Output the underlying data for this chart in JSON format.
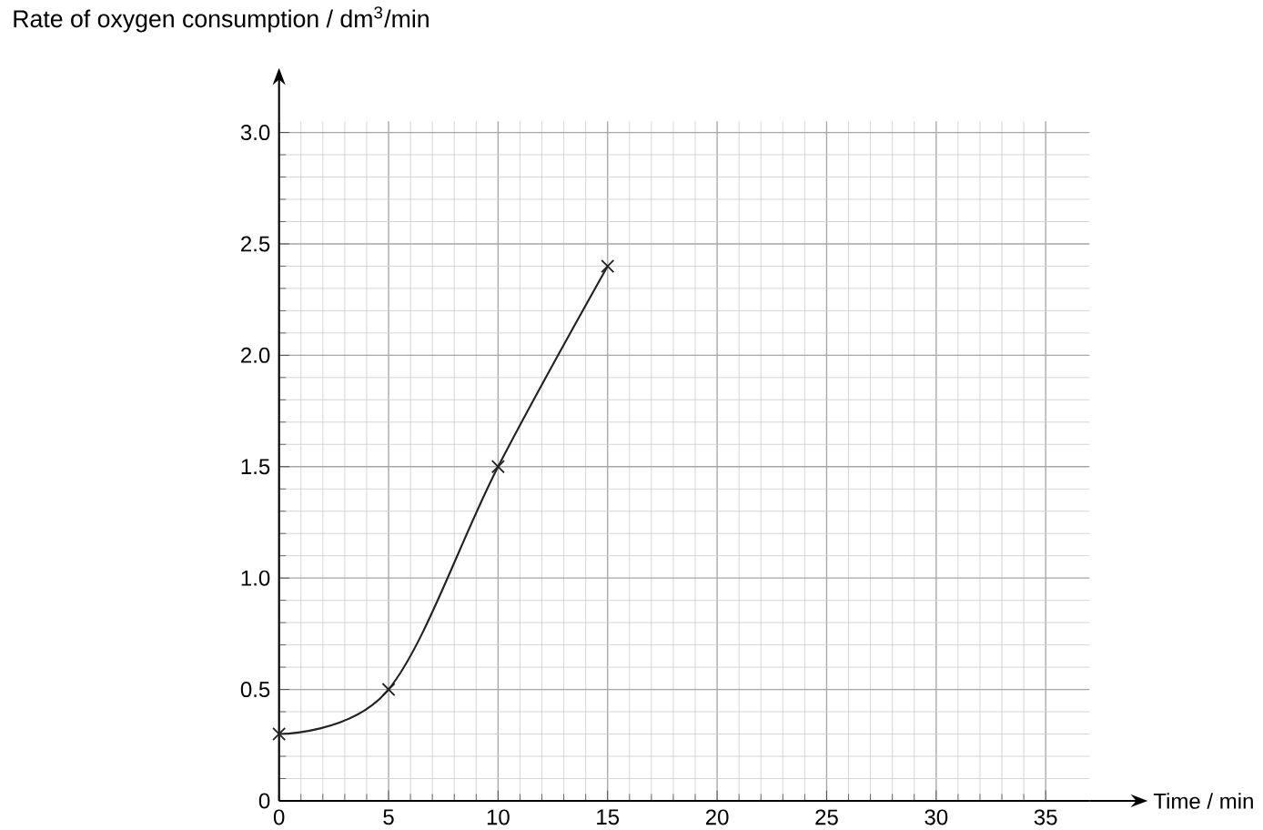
{
  "chart_data": {
    "type": "line",
    "xlabel": "Time / min",
    "ylabel": "Rate of oxygen consumption / dm$^{3}$/min",
    "x": [
      0,
      5,
      10,
      15
    ],
    "series": [
      {
        "color": "#222222",
        "values": [
          0.3,
          0.5,
          1.5,
          2.4
        ]
      }
    ],
    "marker": "cross",
    "line_style": "solid",
    "grid": true,
    "xlim": [
      0,
      37
    ],
    "ylim": [
      0,
      3.05
    ],
    "xticks": [
      0,
      5,
      10,
      15,
      20,
      25,
      30,
      35
    ],
    "yticks": [
      {
        "value": 0,
        "label": "0"
      },
      {
        "value": 0.5,
        "label": "0.5"
      },
      {
        "value": 1,
        "label": "1.0"
      },
      {
        "value": 1.5,
        "label": "1.5"
      },
      {
        "value": 2,
        "label": "2.0"
      },
      {
        "value": 2.5,
        "label": "2.5"
      },
      {
        "value": 3,
        "label": "3.0"
      }
    ]
  }
}
